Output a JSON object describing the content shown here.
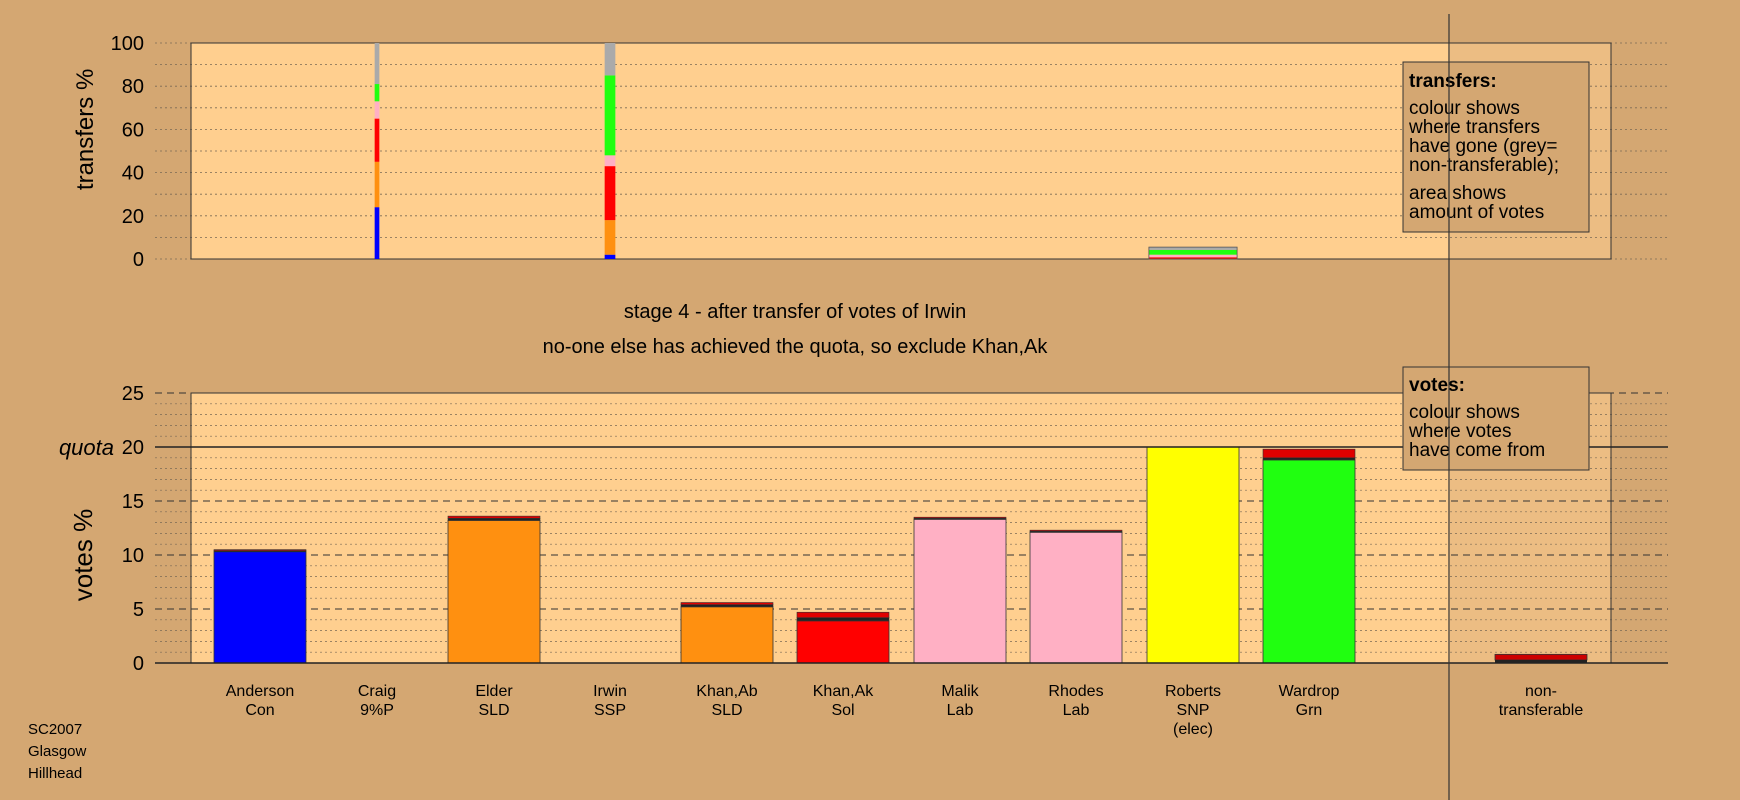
{
  "footer": {
    "line1": "SC2007",
    "line2": "Glasgow",
    "line3": "Hillhead"
  },
  "colors": {
    "page_bg": "#d4a772",
    "plot_bg": "#ffcf8f",
    "legend_box_bg": "#d4a772",
    "con": "#0000ff",
    "sld": "#ff9010",
    "sol": "#ff0000",
    "lab": "#ffb0c4",
    "snp": "#ffff00",
    "grn": "#20ff10",
    "nontransferable": "#aaaaaa"
  },
  "chart_data": [
    {
      "type": "bar",
      "panel": "transfers",
      "ylabel": "transfers %",
      "ylim": [
        0,
        100
      ],
      "yticks": [
        0,
        20,
        40,
        60,
        80,
        100
      ],
      "grid": "dotted, every 10",
      "candidates": [
        "Craig 9%P",
        "Irwin SSP",
        "Roberts SNP"
      ],
      "stacks": [
        {
          "candidate": "Craig",
          "total": 100,
          "segments": [
            {
              "to": "Con",
              "value": 24
            },
            {
              "to": "SLD",
              "value": 21
            },
            {
              "to": "Sol",
              "value": 20
            },
            {
              "to": "Lab",
              "value": 8
            },
            {
              "to": "Grn",
              "value": 8
            },
            {
              "to": "non-transferable",
              "value": 19
            }
          ]
        },
        {
          "candidate": "Irwin",
          "total": 100,
          "segments": [
            {
              "to": "Con",
              "value": 2
            },
            {
              "to": "SLD",
              "value": 16
            },
            {
              "to": "Sol",
              "value": 25
            },
            {
              "to": "Lab",
              "value": 5
            },
            {
              "to": "Grn",
              "value": 37
            },
            {
              "to": "non-transferable",
              "value": 15
            }
          ]
        },
        {
          "candidate": "Roberts",
          "total": 5.5,
          "segments": [
            {
              "to": "Sol",
              "value": 0.8
            },
            {
              "to": "Lab",
              "value": 1.2
            },
            {
              "to": "Grn",
              "value": 2.2
            },
            {
              "to": "non-transferable",
              "value": 1.3
            }
          ]
        }
      ],
      "legend": {
        "title": "transfers:",
        "lines": [
          "colour shows",
          "where transfers",
          "have gone (grey=",
          "non-transferable);",
          "area shows",
          "amount of votes"
        ],
        "placement": "top-right"
      }
    },
    {
      "type": "bar",
      "panel": "votes",
      "stage_title": "stage 4 - after transfer of votes of Irwin",
      "stage_subtitle": "no-one else has achieved the quota, so exclude Khan,Ak",
      "ylabel": "votes %",
      "ylim": [
        0,
        25
      ],
      "yticks": [
        0,
        5,
        10,
        15,
        20,
        25
      ],
      "grid": "dashed every 5, dotted every 1",
      "quota_label": "quota",
      "quota": 20,
      "categories": [
        {
          "name": "Anderson",
          "party": "Con",
          "color": "#0000ff"
        },
        {
          "name": "Craig",
          "party": "9%P",
          "color": "#aaaaaa"
        },
        {
          "name": "Elder",
          "party": "SLD",
          "color": "#ff9010"
        },
        {
          "name": "Irwin",
          "party": "SSP",
          "color": "#aaaaaa"
        },
        {
          "name": "Khan,Ab",
          "party": "SLD",
          "color": "#ff9010"
        },
        {
          "name": "Khan,Ak",
          "party": "Sol",
          "color": "#ff0000"
        },
        {
          "name": "Malik",
          "party": "Lab",
          "color": "#ffb0c4"
        },
        {
          "name": "Rhodes",
          "party": "Lab",
          "color": "#ffb0c4"
        },
        {
          "name": "Roberts",
          "party": "SNP",
          "status": "(elec)",
          "color": "#ffff00"
        },
        {
          "name": "Wardrop",
          "party": "Grn",
          "color": "#20ff10"
        }
      ],
      "values": [
        10.5,
        0,
        13.6,
        0,
        5.6,
        4.7,
        13.5,
        12.3,
        20.0,
        19.8
      ],
      "transfer_segments": [
        [
          {
            "from": "Craig",
            "value": 0.1
          },
          {
            "from": "Irwin",
            "value": 0.1
          }
        ],
        [],
        [
          {
            "from": "Craig",
            "value": 0.2
          },
          {
            "from": "Irwin",
            "value": 0.2
          }
        ],
        [],
        [
          {
            "from": "Craig",
            "value": 0.2
          },
          {
            "from": "Irwin",
            "value": 0.2
          }
        ],
        [
          {
            "from": "Craig",
            "value": 0.3
          },
          {
            "from": "Irwin",
            "value": 0.5
          }
        ],
        [
          {
            "from": "Craig",
            "value": 0.1
          },
          {
            "from": "Irwin",
            "value": 0.1
          }
        ],
        [
          {
            "from": "Craig",
            "value": 0.1
          },
          {
            "from": "Irwin",
            "value": 0.1
          }
        ],
        [],
        [
          {
            "from": "Craig",
            "value": 0.2
          },
          {
            "from": "Irwin",
            "value": 0.8
          }
        ]
      ],
      "nontransferable": {
        "label_line1": "non-",
        "label_line2": "transferable",
        "value": 0.8
      },
      "legend": {
        "title": "votes:",
        "lines": [
          "colour shows",
          "where votes",
          "have come from"
        ],
        "placement": "top-right"
      }
    }
  ]
}
